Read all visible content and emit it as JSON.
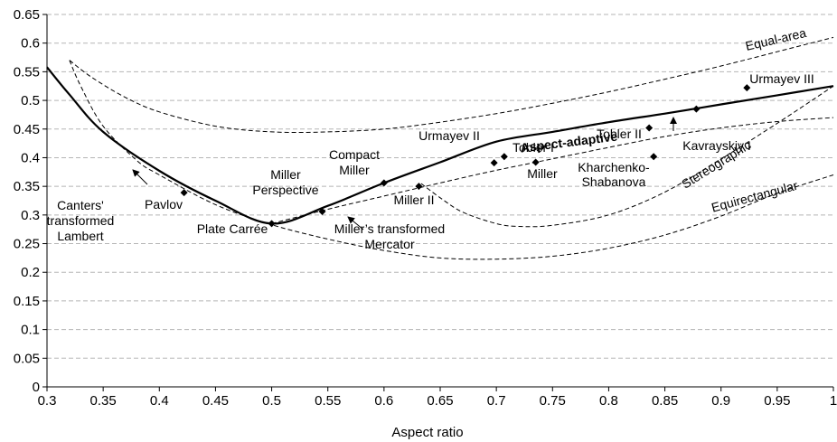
{
  "chart_data": {
    "type": "line",
    "title": "",
    "xlabel": "Aspect ratio",
    "ylabel": "",
    "xlim": [
      0.3,
      1.0
    ],
    "ylim": [
      0,
      0.65
    ],
    "x_ticks": [
      "0.3",
      "0.35",
      "0.4",
      "0.45",
      "0.5",
      "0.55",
      "0.6",
      "0.65",
      "0.7",
      "0.75",
      "0.8",
      "0.85",
      "0.9",
      "0.95",
      "1"
    ],
    "y_ticks": [
      "0",
      "0.05",
      "0.1",
      "0.15",
      "0.2",
      "0.25",
      "0.3",
      "0.35",
      "0.4",
      "0.45",
      "0.5",
      "0.55",
      "0.6",
      "0.65"
    ],
    "grid": "horizontal dashed",
    "series": [
      {
        "name": "Aspect-adaptive",
        "style": "solid-bold",
        "points": [
          [
            0.3,
            0.558
          ],
          [
            0.32,
            0.51
          ],
          [
            0.35,
            0.445
          ],
          [
            0.4,
            0.377
          ],
          [
            0.45,
            0.325
          ],
          [
            0.5,
            0.285
          ],
          [
            0.55,
            0.316
          ],
          [
            0.6,
            0.356
          ],
          [
            0.65,
            0.392
          ],
          [
            0.7,
            0.428
          ],
          [
            0.75,
            0.445
          ],
          [
            0.8,
            0.462
          ],
          [
            0.85,
            0.477
          ],
          [
            0.9,
            0.493
          ],
          [
            0.95,
            0.509
          ],
          [
            1.0,
            0.525
          ]
        ]
      },
      {
        "name": "Equal-area",
        "style": "dashed",
        "points": [
          [
            0.32,
            0.57
          ],
          [
            0.34,
            0.54
          ],
          [
            0.37,
            0.505
          ],
          [
            0.4,
            0.48
          ],
          [
            0.45,
            0.455
          ],
          [
            0.5,
            0.445
          ],
          [
            0.55,
            0.445
          ],
          [
            0.6,
            0.45
          ],
          [
            0.65,
            0.462
          ],
          [
            0.7,
            0.477
          ],
          [
            0.75,
            0.495
          ],
          [
            0.8,
            0.515
          ],
          [
            0.85,
            0.537
          ],
          [
            0.9,
            0.56
          ],
          [
            0.95,
            0.585
          ],
          [
            1.0,
            0.61
          ]
        ]
      },
      {
        "name": "Canters' transformed Lambert",
        "style": "dashed",
        "points": [
          [
            0.32,
            0.57
          ],
          [
            0.33,
            0.525
          ],
          [
            0.35,
            0.455
          ],
          [
            0.38,
            0.395
          ],
          [
            0.4,
            0.37
          ],
          [
            0.45,
            0.318
          ],
          [
            0.5,
            0.283
          ],
          [
            0.55,
            0.258
          ],
          [
            0.6,
            0.238
          ],
          [
            0.65,
            0.225
          ],
          [
            0.7,
            0.223
          ],
          [
            0.75,
            0.228
          ],
          [
            0.8,
            0.242
          ],
          [
            0.85,
            0.265
          ],
          [
            0.9,
            0.298
          ],
          [
            0.95,
            0.338
          ],
          [
            1.0,
            0.37
          ]
        ]
      },
      {
        "name": "Miller's transformed Mercator",
        "style": "dashed",
        "points": [
          [
            0.5,
            0.285
          ],
          [
            0.55,
            0.31
          ],
          [
            0.6,
            0.333
          ],
          [
            0.65,
            0.356
          ],
          [
            0.7,
            0.378
          ],
          [
            0.75,
            0.398
          ],
          [
            0.8,
            0.418
          ],
          [
            0.85,
            0.437
          ],
          [
            0.9,
            0.452
          ],
          [
            0.95,
            0.463
          ],
          [
            1.0,
            0.47
          ]
        ]
      },
      {
        "name": "Stereographic",
        "style": "dashed",
        "points": [
          [
            0.633,
            0.355
          ],
          [
            0.65,
            0.33
          ],
          [
            0.67,
            0.305
          ],
          [
            0.7,
            0.285
          ],
          [
            0.72,
            0.28
          ],
          [
            0.75,
            0.282
          ],
          [
            0.8,
            0.3
          ],
          [
            0.85,
            0.34
          ],
          [
            0.9,
            0.398
          ],
          [
            0.95,
            0.46
          ],
          [
            1.0,
            0.525
          ]
        ]
      }
    ],
    "points": [
      {
        "label": "Pavlov",
        "x": 0.422,
        "y": 0.339
      },
      {
        "label": "Plate Carrée",
        "x": 0.5,
        "y": 0.285
      },
      {
        "label": "Miller Perspective",
        "x": 0.545,
        "y": 0.306
      },
      {
        "label": "Compact Miller",
        "x": 0.6,
        "y": 0.356
      },
      {
        "label": "Miller II",
        "x": 0.631,
        "y": 0.35
      },
      {
        "label": "Miller",
        "x": 0.698,
        "y": 0.391
      },
      {
        "label": "Urmayev II",
        "x": 0.707,
        "y": 0.402
      },
      {
        "label": "Tobler I",
        "x": 0.735,
        "y": 0.392
      },
      {
        "label": "Tobler II",
        "x": 0.836,
        "y": 0.452
      },
      {
        "label": "Kharchenko-Shabanova",
        "x": 0.84,
        "y": 0.402
      },
      {
        "label": "Kavrayskiy I",
        "x": 0.878,
        "y": 0.485
      },
      {
        "label": "Urmayev III",
        "x": 0.923,
        "y": 0.522
      }
    ],
    "annotations": {
      "equal_area": "Equal-area",
      "aspect_adaptive": "Aspect-adaptive",
      "stereographic": "Stereographic",
      "equirectangular": "Equirectangular",
      "canters_1": "Canters'",
      "canters_2": "transformed",
      "canters_3": "Lambert",
      "pavlov": "Pavlov",
      "plate_carree": "Plate Carrée",
      "miller_persp_1": "Miller",
      "miller_persp_2": "Perspective",
      "compact_miller_1": "Compact",
      "compact_miller_2": "Miller",
      "millers_tm_1": "Miller’s transformed",
      "millers_tm_2": "Mercator",
      "miller_ii": "Miller II",
      "urmayev_ii": "Urmayev II",
      "tobler_i": "Tobler I",
      "miller": "Miller",
      "tobler_ii": "Tobler II",
      "kharchenko_1": "Kharchenko-",
      "kharchenko_2": "Shabanova",
      "kavrayskiy": "Kavrayskiy I",
      "urmayev_iii": "Urmayev III"
    }
  }
}
